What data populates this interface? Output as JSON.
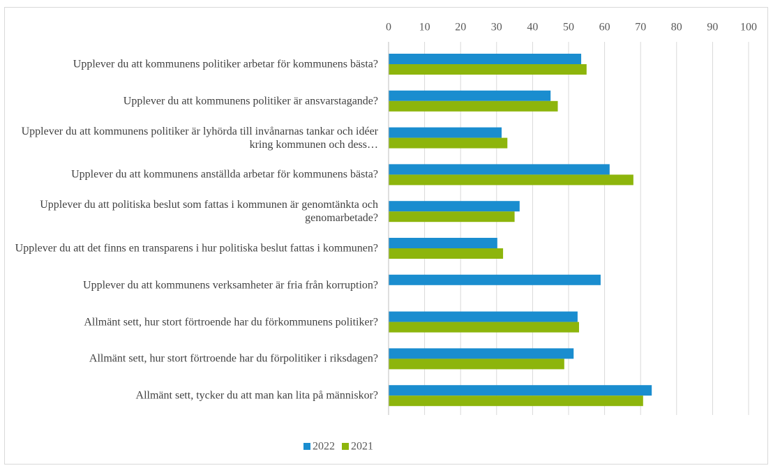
{
  "chart_data": {
    "type": "bar",
    "orientation": "horizontal",
    "categories": [
      "Upplever du att kommunens politiker arbetar för kommunens bästa?",
      "Upplever du att kommunens politiker är ansvarstagande?",
      "Upplever du att kommunens politiker är lyhörda till invånarnas tankar och idéer kring kommunen och dess…",
      "Upplever du att kommunens anställda arbetar för kommunens bästa?",
      "Upplever du att politiska beslut som fattas i kommunen är genomtänkta och genomarbetade?",
      "Upplever du att det finns en transparens i hur politiska beslut fattas i kommunen?",
      "Upplever du att kommunens verksamheter är fria från korruption?",
      "Allmänt sett, hur stort förtroende har du förkommunens politiker?",
      "Allmänt sett, hur stort förtroende har du förpolitiker i riksdagen?",
      "Allmänt sett, tycker du att man kan lita på människor?"
    ],
    "series": [
      {
        "name": "2022",
        "color": "#1a8dcf",
        "values": [
          53.5,
          45,
          31.4,
          61.4,
          36.4,
          30.2,
          58.9,
          52.5,
          51.4,
          73.1
        ]
      },
      {
        "name": "2021",
        "color": "#8db50c",
        "values": [
          55,
          47,
          33,
          68,
          35,
          31.8,
          null,
          52.9,
          48.8,
          70.7
        ]
      }
    ],
    "xlim": [
      0,
      100
    ],
    "xticks": [
      0,
      10,
      20,
      30,
      40,
      50,
      60,
      70,
      80,
      90,
      100
    ],
    "grid": true,
    "legend": "bottom"
  }
}
